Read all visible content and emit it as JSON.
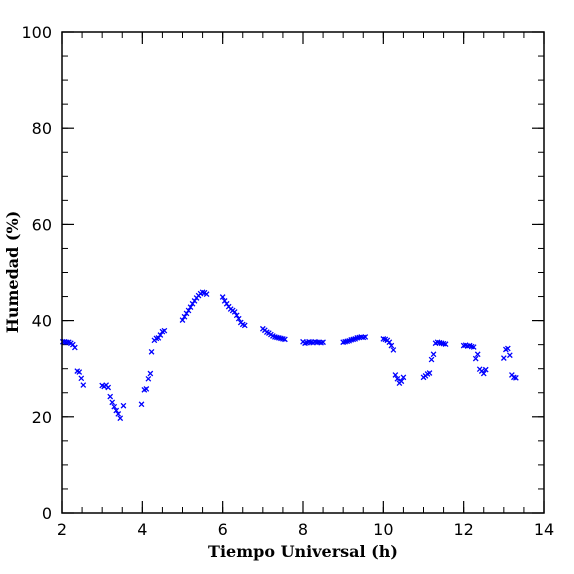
{
  "chart_data": {
    "type": "scatter",
    "xlabel": "Tiempo Universal (h)",
    "ylabel": "Humedad (%)",
    "xlim": [
      2,
      14
    ],
    "ylim": [
      0,
      100
    ],
    "x_ticks": [
      2,
      4,
      6,
      8,
      10,
      12,
      14
    ],
    "y_ticks": [
      0,
      20,
      40,
      60,
      80,
      100
    ],
    "x_minor_step": 0.5,
    "y_minor_step": 5,
    "grid": false,
    "legend": "none",
    "marker": "x",
    "color": "#0000ff",
    "series": [
      {
        "points": [
          [
            2.02,
            35.6
          ],
          [
            2.07,
            35.6
          ],
          [
            2.12,
            35.5
          ],
          [
            2.17,
            35.5
          ],
          [
            2.22,
            35.3
          ],
          [
            2.27,
            35.0
          ],
          [
            2.32,
            34.4
          ],
          [
            2.38,
            29.5
          ],
          [
            2.43,
            29.3
          ],
          [
            2.48,
            28.0
          ],
          [
            2.53,
            26.6
          ],
          [
            3.0,
            26.5
          ],
          [
            3.05,
            26.3
          ],
          [
            3.1,
            26.6
          ],
          [
            3.15,
            26.1
          ],
          [
            3.2,
            24.2
          ],
          [
            3.25,
            23.0
          ],
          [
            3.3,
            22.1
          ],
          [
            3.35,
            21.3
          ],
          [
            3.4,
            20.6
          ],
          [
            3.45,
            19.7
          ],
          [
            3.53,
            22.3
          ],
          [
            3.98,
            22.6
          ],
          [
            4.05,
            25.6
          ],
          [
            4.1,
            25.8
          ],
          [
            4.15,
            27.9
          ],
          [
            4.2,
            29.0
          ],
          [
            4.23,
            33.5
          ],
          [
            4.3,
            35.9
          ],
          [
            4.35,
            36.3
          ],
          [
            4.4,
            36.4
          ],
          [
            4.45,
            37.0
          ],
          [
            4.5,
            37.7
          ],
          [
            4.55,
            37.9
          ],
          [
            5.0,
            40.1
          ],
          [
            5.05,
            40.8
          ],
          [
            5.1,
            41.5
          ],
          [
            5.15,
            42.1
          ],
          [
            5.2,
            42.8
          ],
          [
            5.25,
            43.5
          ],
          [
            5.3,
            44.1
          ],
          [
            5.35,
            44.7
          ],
          [
            5.4,
            45.2
          ],
          [
            5.45,
            45.6
          ],
          [
            5.5,
            45.9
          ],
          [
            5.55,
            45.8
          ],
          [
            5.6,
            45.5
          ],
          [
            6.0,
            44.9
          ],
          [
            6.05,
            44.1
          ],
          [
            6.1,
            43.5
          ],
          [
            6.15,
            42.9
          ],
          [
            6.2,
            42.4
          ],
          [
            6.25,
            42.1
          ],
          [
            6.3,
            41.8
          ],
          [
            6.35,
            41.1
          ],
          [
            6.4,
            40.4
          ],
          [
            6.45,
            39.6
          ],
          [
            6.5,
            39.2
          ],
          [
            6.55,
            39.0
          ],
          [
            7.0,
            38.3
          ],
          [
            7.05,
            38.0
          ],
          [
            7.1,
            37.6
          ],
          [
            7.15,
            37.4
          ],
          [
            7.2,
            37.1
          ],
          [
            7.25,
            36.8
          ],
          [
            7.3,
            36.6
          ],
          [
            7.35,
            36.5
          ],
          [
            7.4,
            36.4
          ],
          [
            7.45,
            36.3
          ],
          [
            7.5,
            36.2
          ],
          [
            7.55,
            36.1
          ],
          [
            8.0,
            35.6
          ],
          [
            8.05,
            35.3
          ],
          [
            8.1,
            35.4
          ],
          [
            8.15,
            35.6
          ],
          [
            8.2,
            35.5
          ],
          [
            8.25,
            35.4
          ],
          [
            8.3,
            35.6
          ],
          [
            8.35,
            35.5
          ],
          [
            8.4,
            35.5
          ],
          [
            8.45,
            35.4
          ],
          [
            8.5,
            35.5
          ],
          [
            9.0,
            35.5
          ],
          [
            9.05,
            35.6
          ],
          [
            9.1,
            35.7
          ],
          [
            9.15,
            35.8
          ],
          [
            9.2,
            36.0
          ],
          [
            9.25,
            36.1
          ],
          [
            9.3,
            36.2
          ],
          [
            9.35,
            36.4
          ],
          [
            9.4,
            36.5
          ],
          [
            9.45,
            36.6
          ],
          [
            9.5,
            36.5
          ],
          [
            9.55,
            36.6
          ],
          [
            10.0,
            36.2
          ],
          [
            10.05,
            36.1
          ],
          [
            10.1,
            35.9
          ],
          [
            10.15,
            35.5
          ],
          [
            10.2,
            34.8
          ],
          [
            10.25,
            33.9
          ],
          [
            10.3,
            28.7
          ],
          [
            10.35,
            27.9
          ],
          [
            10.4,
            27.0
          ],
          [
            10.45,
            27.4
          ],
          [
            10.5,
            28.2
          ],
          [
            11.0,
            28.2
          ],
          [
            11.05,
            28.5
          ],
          [
            11.1,
            28.9
          ],
          [
            11.15,
            29.1
          ],
          [
            11.2,
            31.9
          ],
          [
            11.25,
            33.0
          ],
          [
            11.3,
            35.3
          ],
          [
            11.35,
            35.5
          ],
          [
            11.4,
            35.4
          ],
          [
            11.45,
            35.3
          ],
          [
            11.5,
            35.2
          ],
          [
            11.55,
            35.1
          ],
          [
            12.0,
            34.8
          ],
          [
            12.05,
            34.9
          ],
          [
            12.1,
            34.7
          ],
          [
            12.15,
            34.8
          ],
          [
            12.2,
            34.6
          ],
          [
            12.25,
            34.5
          ],
          [
            12.3,
            32.1
          ],
          [
            12.35,
            33.0
          ],
          [
            12.4,
            29.9
          ],
          [
            12.45,
            29.5
          ],
          [
            12.5,
            29.0
          ],
          [
            12.55,
            29.8
          ],
          [
            13.0,
            32.2
          ],
          [
            13.05,
            34.0
          ],
          [
            13.1,
            34.2
          ],
          [
            13.15,
            32.8
          ],
          [
            13.2,
            28.7
          ],
          [
            13.25,
            28.2
          ],
          [
            13.3,
            28.1
          ]
        ]
      }
    ]
  }
}
